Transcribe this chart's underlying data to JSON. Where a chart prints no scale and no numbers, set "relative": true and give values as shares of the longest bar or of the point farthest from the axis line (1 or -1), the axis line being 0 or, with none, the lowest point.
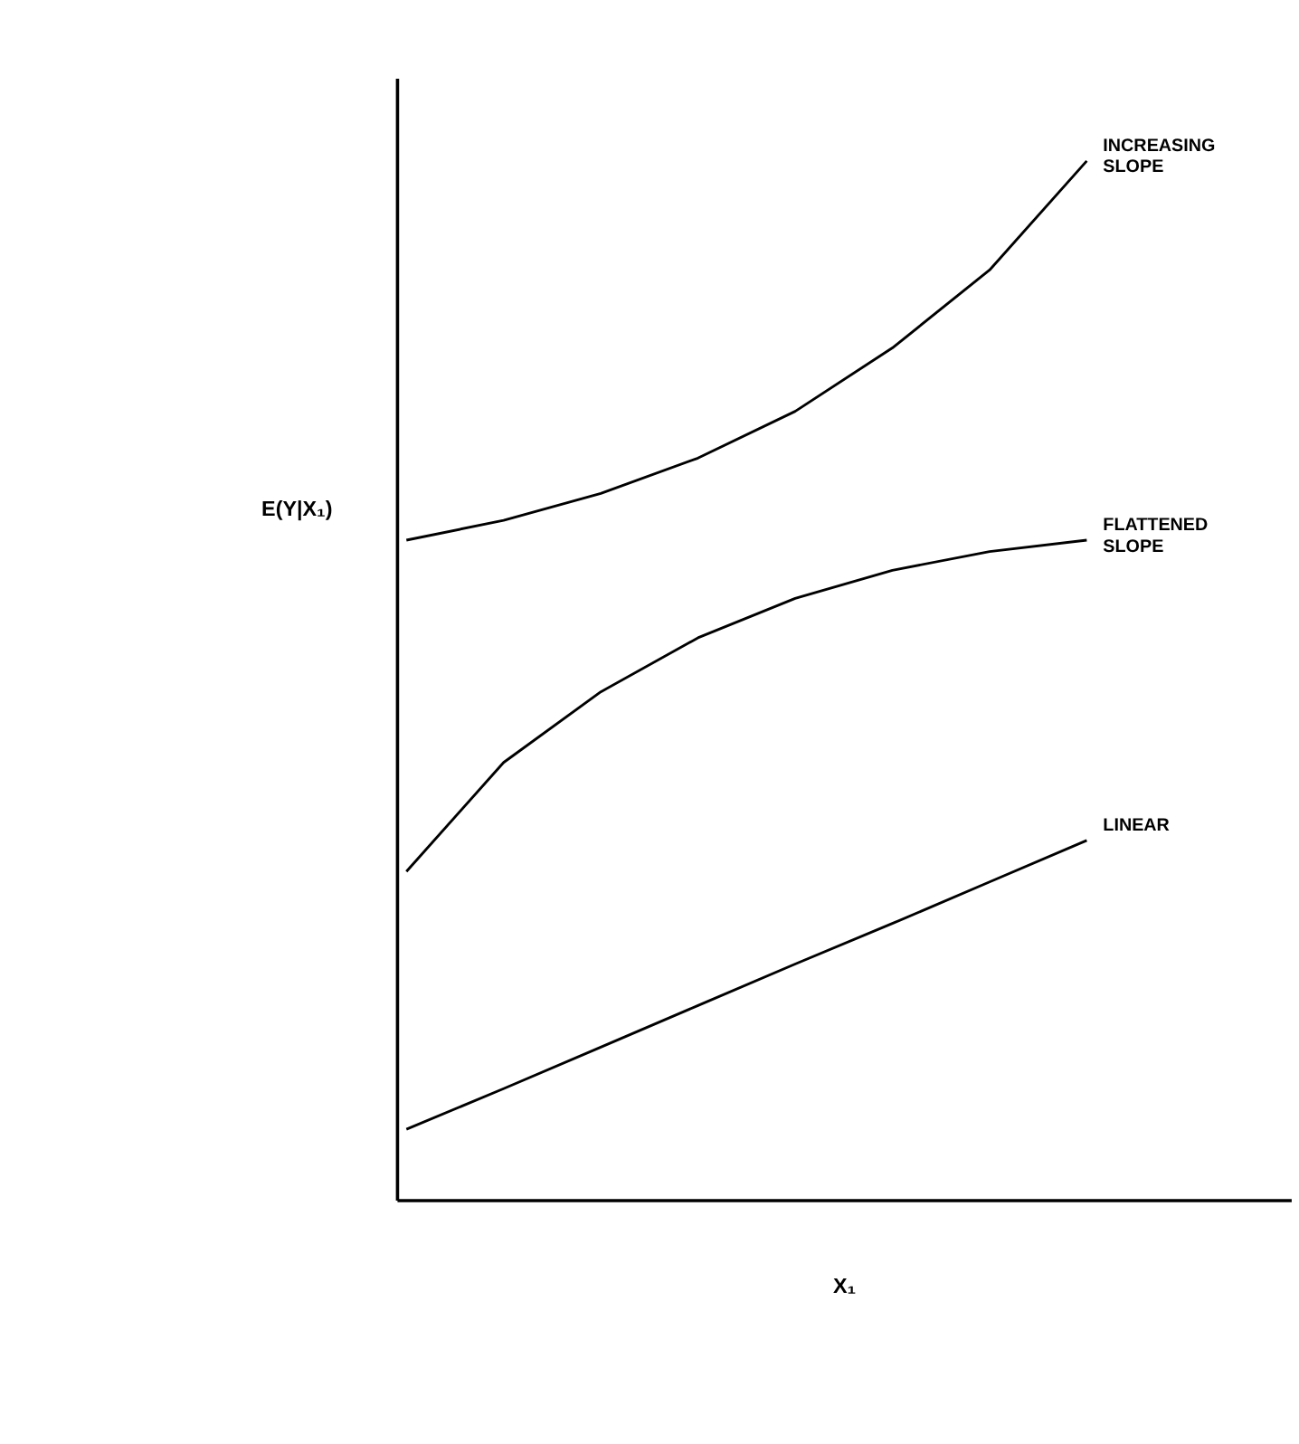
{
  "chart_data": {
    "type": "line",
    "relative": true,
    "xlabel": "X₁",
    "ylabel": "E(Y|X₁)",
    "categories": [
      null,
      null,
      null,
      null,
      null,
      null,
      null,
      null
    ],
    "series": [
      {
        "name": "INCREASING SLOPE",
        "color": "#000000",
        "values": [
          0.635,
          0.654,
          0.68,
          0.714,
          0.759,
          0.82,
          0.895,
          1.0
        ]
      },
      {
        "name": "FLATTENED SLOPE",
        "color": "#000000",
        "values": [
          0.316,
          0.421,
          0.489,
          0.541,
          0.579,
          0.606,
          0.624,
          0.635
        ]
      },
      {
        "name": "LINEAR",
        "color": "#000000",
        "values": [
          0.068,
          0.107,
          0.147,
          0.187,
          0.227,
          0.266,
          0.306,
          0.346
        ]
      }
    ],
    "legend": false,
    "grid": false,
    "marker": "none",
    "line_style": "solid"
  }
}
